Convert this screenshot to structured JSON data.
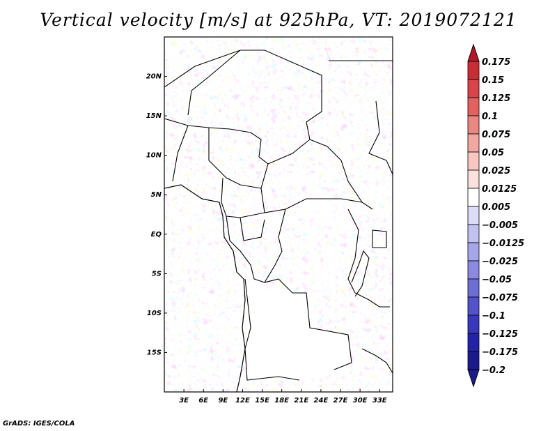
{
  "title": "Vertical velocity [m/s] at 925hPa, VT: 2019072121",
  "footer": "GrADS: IGES/COLA",
  "map": {
    "lon_range": [
      0,
      35
    ],
    "lat_range": [
      -20,
      25
    ],
    "lat_ticks": [
      "20N",
      "15N",
      "10N",
      "5N",
      "EQ",
      "5S",
      "10S",
      "15S"
    ],
    "lat_values": [
      20,
      15,
      10,
      5,
      0,
      -5,
      -10,
      -15
    ],
    "lon_ticks": [
      "3E",
      "6E",
      "9E",
      "12E",
      "15E",
      "18E",
      "21E",
      "24E",
      "27E",
      "30E",
      "33E"
    ],
    "lon_values": [
      3,
      6,
      9,
      12,
      15,
      18,
      21,
      24,
      27,
      30,
      33
    ]
  },
  "colorbar": {
    "labels": [
      "0.175",
      "0.15",
      "0.125",
      "0.1",
      "0.075",
      "0.05",
      "0.025",
      "0.0125",
      "0.005",
      "−0.005",
      "−0.0125",
      "−0.025",
      "−0.05",
      "−0.075",
      "−0.1",
      "−0.125",
      "−0.175",
      "−0.2"
    ],
    "colors": [
      "#b2182b",
      "#c62e35",
      "#d6454a",
      "#e2625f",
      "#ec8682",
      "#f4a7a2",
      "#f9c6c1",
      "#fce0dc",
      "#ffffff",
      "#dcdcf6",
      "#c2c2f0",
      "#a6a6ea",
      "#8a8ae2",
      "#6d6dd8",
      "#5252cc",
      "#3838bd",
      "#2323a6",
      "#1a1a8c"
    ]
  }
}
